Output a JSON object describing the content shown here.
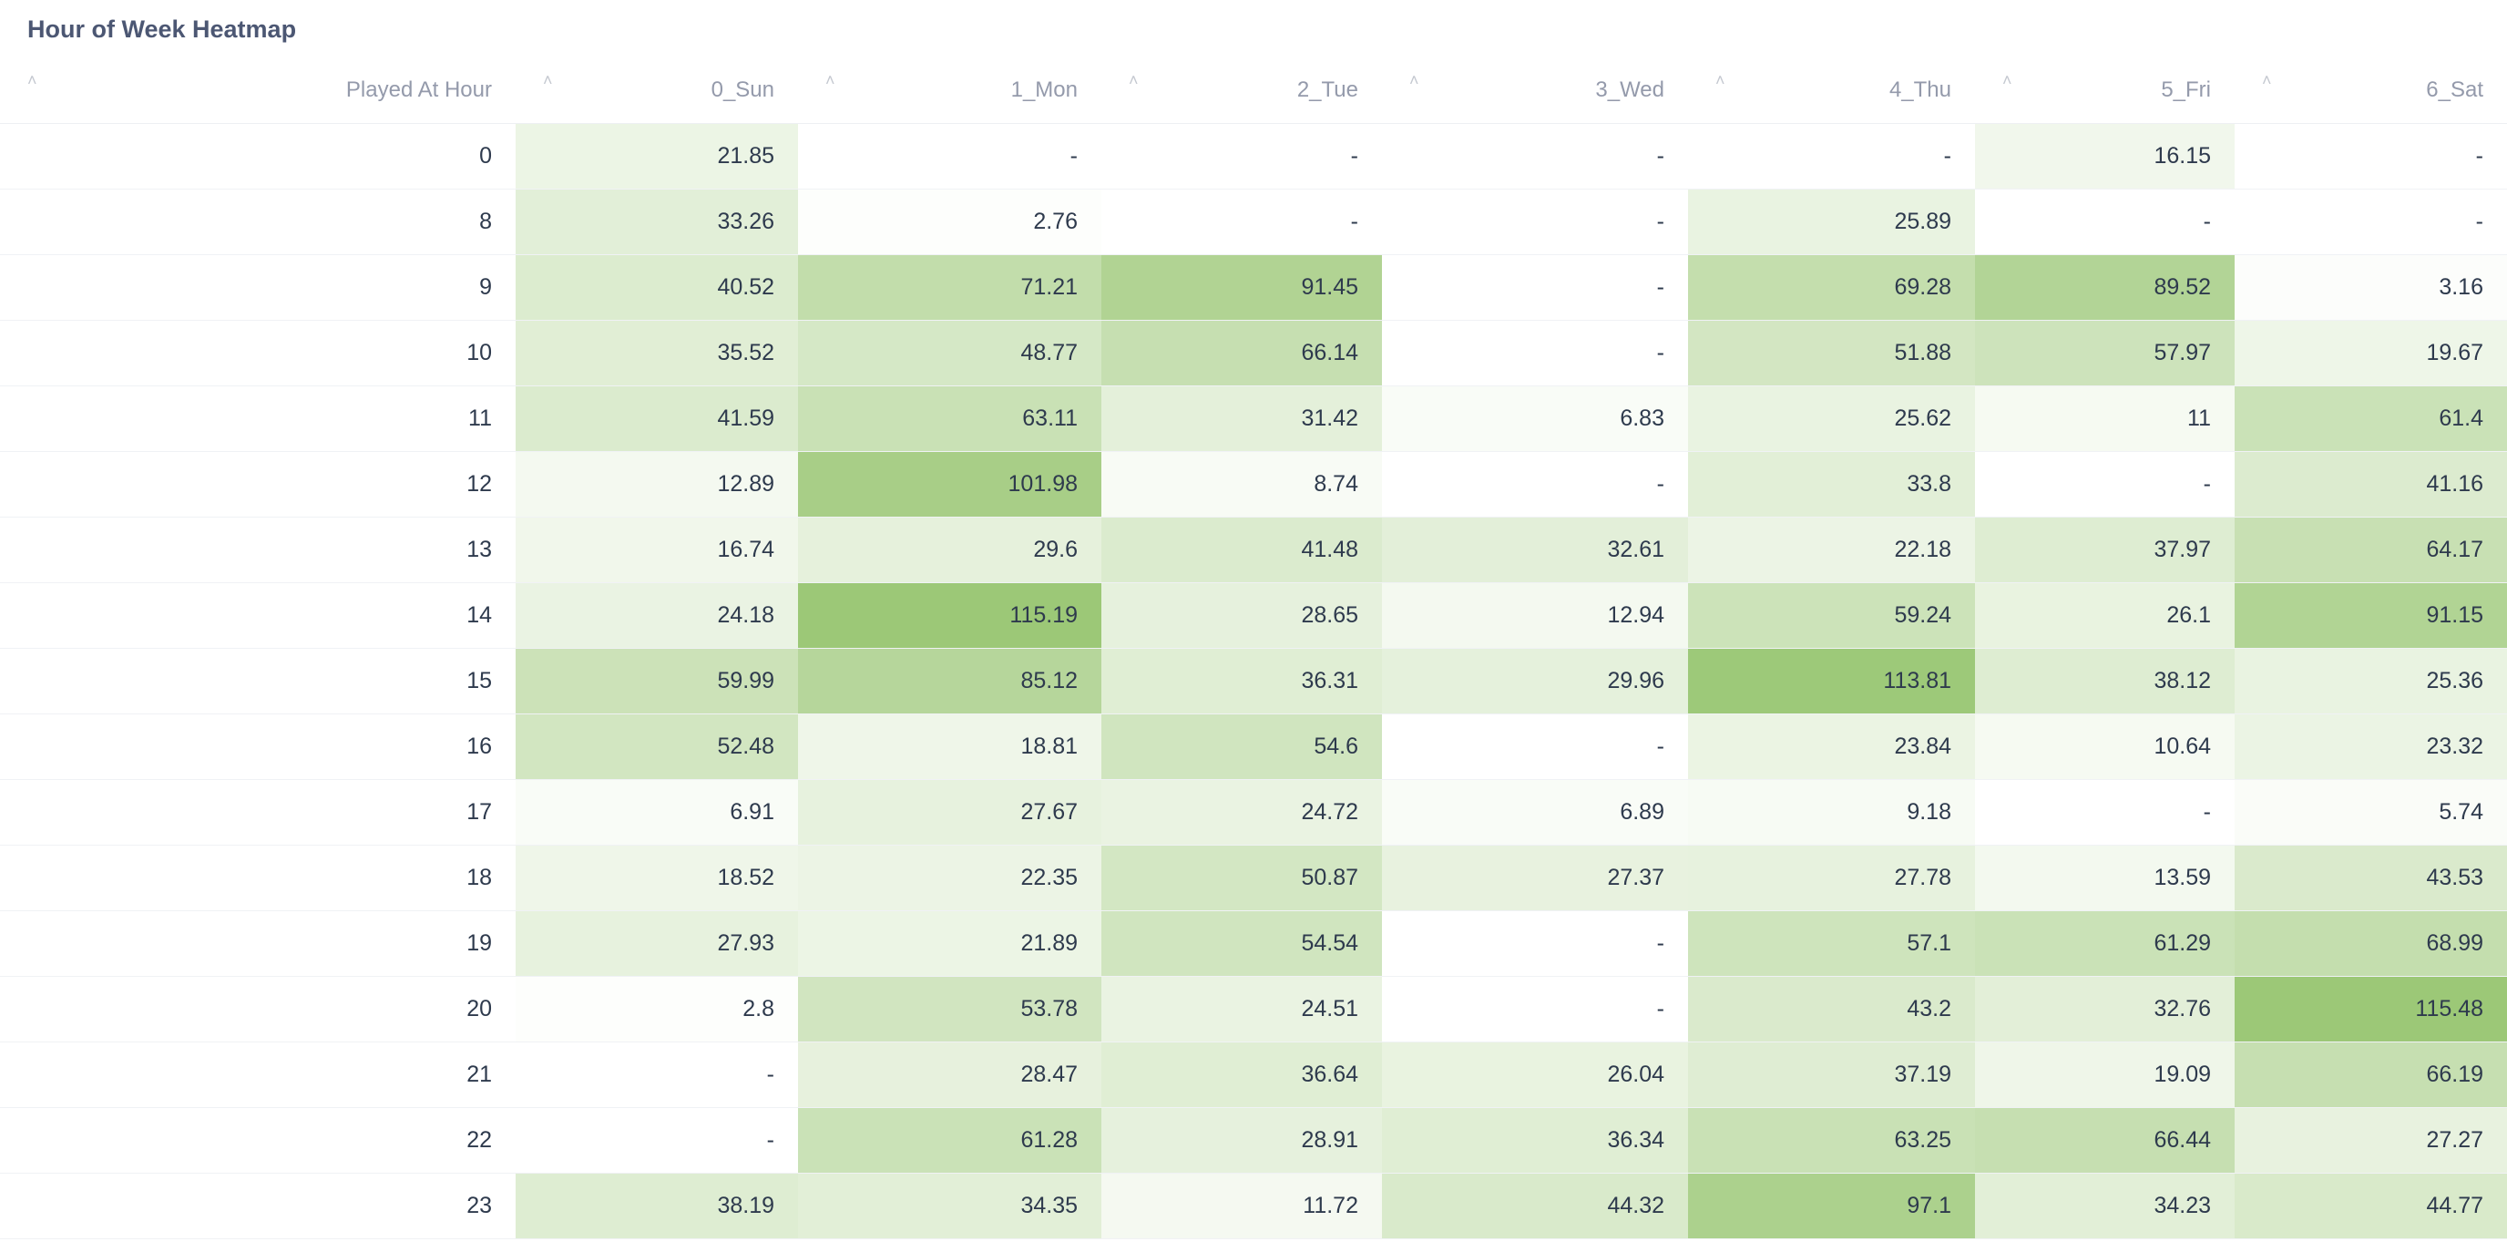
{
  "card": {
    "title": "Hour of Week Heatmap"
  },
  "table": {
    "sort_icon": "chevron-up-icon",
    "columns": [
      "Played At Hour",
      "0_Sun",
      "1_Mon",
      "2_Tue",
      "3_Wed",
      "4_Thu",
      "5_Fri",
      "6_Sat"
    ],
    "rows": [
      [
        "0",
        "21.85",
        "-",
        "-",
        "-",
        "-",
        "16.15",
        "-"
      ],
      [
        "8",
        "33.26",
        "2.76",
        "-",
        "-",
        "25.89",
        "-",
        "-"
      ],
      [
        "9",
        "40.52",
        "71.21",
        "91.45",
        "-",
        "69.28",
        "89.52",
        "3.16"
      ],
      [
        "10",
        "35.52",
        "48.77",
        "66.14",
        "-",
        "51.88",
        "57.97",
        "19.67"
      ],
      [
        "11",
        "41.59",
        "63.11",
        "31.42",
        "6.83",
        "25.62",
        "11",
        "61.4"
      ],
      [
        "12",
        "12.89",
        "101.98",
        "8.74",
        "-",
        "33.8",
        "-",
        "41.16"
      ],
      [
        "13",
        "16.74",
        "29.6",
        "41.48",
        "32.61",
        "22.18",
        "37.97",
        "64.17"
      ],
      [
        "14",
        "24.18",
        "115.19",
        "28.65",
        "12.94",
        "59.24",
        "26.1",
        "91.15"
      ],
      [
        "15",
        "59.99",
        "85.12",
        "36.31",
        "29.96",
        "113.81",
        "38.12",
        "25.36"
      ],
      [
        "16",
        "52.48",
        "18.81",
        "54.6",
        "-",
        "23.84",
        "10.64",
        "23.32"
      ],
      [
        "17",
        "6.91",
        "27.67",
        "24.72",
        "6.89",
        "9.18",
        "-",
        "5.74"
      ],
      [
        "18",
        "18.52",
        "22.35",
        "50.87",
        "27.37",
        "27.78",
        "13.59",
        "43.53"
      ],
      [
        "19",
        "27.93",
        "21.89",
        "54.54",
        "-",
        "57.1",
        "61.29",
        "68.99"
      ],
      [
        "20",
        "2.8",
        "53.78",
        "24.51",
        "-",
        "43.2",
        "32.76",
        "115.48"
      ],
      [
        "21",
        "-",
        "28.47",
        "36.64",
        "26.04",
        "37.19",
        "19.09",
        "66.19"
      ],
      [
        "22",
        "-",
        "61.28",
        "28.91",
        "36.34",
        "63.25",
        "66.44",
        "27.27"
      ],
      [
        "23",
        "38.19",
        "34.35",
        "11.72",
        "44.32",
        "97.1",
        "34.23",
        "44.77"
      ]
    ],
    "heat_colors": {
      "low": "#ffffff",
      "high": "#9cc877"
    },
    "heat_max": 115.48
  }
}
